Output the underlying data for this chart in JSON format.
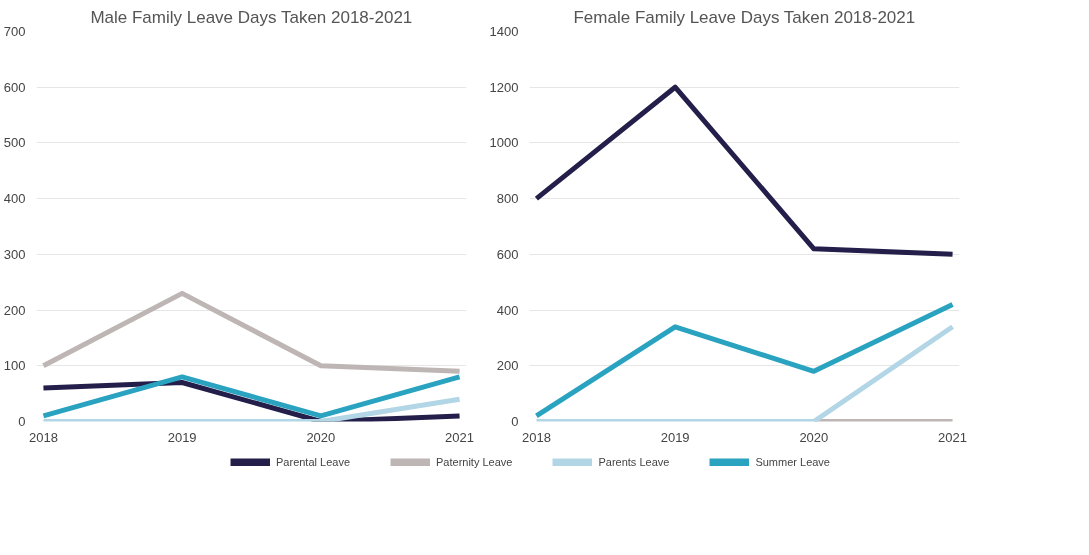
{
  "chart_data": [
    {
      "type": "line",
      "title": "Male Family Leave Days Taken 2018-2021",
      "categories": [
        "2018",
        "2019",
        "2020",
        "2021"
      ],
      "ylim": [
        0,
        700
      ],
      "yticks": [
        0,
        100,
        200,
        300,
        400,
        500,
        600,
        700
      ],
      "grid": "y",
      "legend": "bottom",
      "marker": "none",
      "line_style": "solid",
      "series": [
        {
          "name": "Parental Leave",
          "color": "#231f4a",
          "values": [
            60,
            70,
            0,
            10
          ]
        },
        {
          "name": "Paternity Leave",
          "color": "#bdb6b4",
          "values": [
            100,
            230,
            100,
            90
          ]
        },
        {
          "name": "Parents Leave",
          "color": "#b3d6e6",
          "values": [
            0,
            0,
            0,
            40
          ]
        },
        {
          "name": "Summer Leave",
          "color": "#2aa3c0",
          "values": [
            10,
            80,
            10,
            80
          ]
        }
      ]
    },
    {
      "type": "line",
      "title": "Female Family Leave Days Taken 2018-2021",
      "categories": [
        "2018",
        "2019",
        "2020",
        "2021"
      ],
      "ylim": [
        0,
        1400
      ],
      "yticks": [
        0,
        200,
        400,
        600,
        800,
        1000,
        1200,
        1400
      ],
      "grid": "y",
      "marker": "none",
      "line_style": "solid",
      "series": [
        {
          "color": "#231f4a",
          "values": [
            800,
            1200,
            620,
            600
          ]
        },
        {
          "color": "#bdb6b4",
          "values": [
            null,
            null,
            0,
            0
          ]
        },
        {
          "color": "#b3d6e6",
          "values": [
            0,
            0,
            0,
            340
          ]
        },
        {
          "color": "#2aa3c0",
          "values": [
            20,
            340,
            180,
            420
          ]
        }
      ]
    }
  ]
}
